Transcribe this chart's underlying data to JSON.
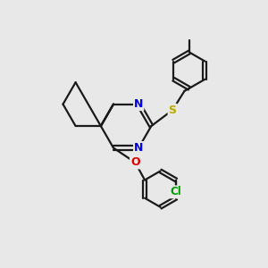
{
  "bg_color": "#e8e8e8",
  "bond_color": "#1a1a1a",
  "N_color": "#0000dd",
  "O_color": "#dd0000",
  "S_color": "#bbaa00",
  "Cl_color": "#009900",
  "lw": 1.6,
  "dbl_off": 0.07,
  "ring_r": 0.95,
  "benz_r": 0.68,
  "xlim": [
    0,
    10
  ],
  "ylim": [
    0,
    10
  ]
}
